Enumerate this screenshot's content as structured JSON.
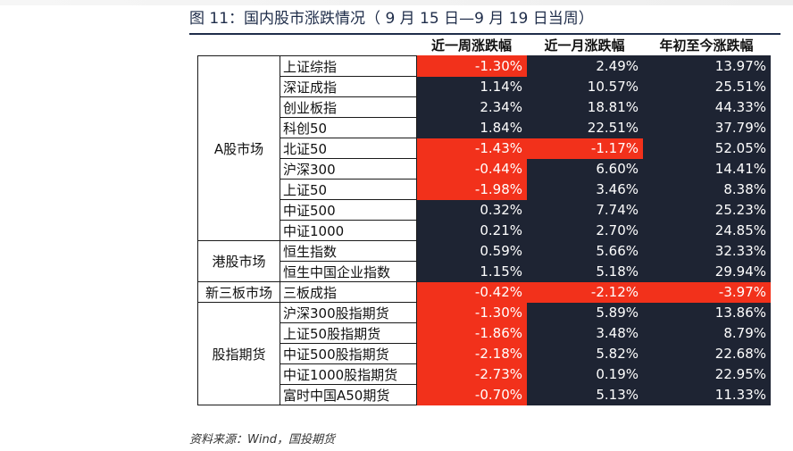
{
  "title": "图 11：国内股市涨跌情况（ 9 月 15 日—9 月 19 日当周）",
  "columns": [
    "近一周涨跌幅",
    "近一月涨跌幅",
    "年初至今涨跌幅"
  ],
  "groups": [
    {
      "label": "A股市场",
      "rows": [
        {
          "name": "上证综指",
          "values": [
            "-1.30%",
            "2.49%",
            "13.97%"
          ]
        },
        {
          "name": "深证成指",
          "values": [
            "1.14%",
            "10.57%",
            "25.51%"
          ]
        },
        {
          "name": "创业板指",
          "values": [
            "2.34%",
            "18.81%",
            "44.33%"
          ]
        },
        {
          "name": "科创50",
          "values": [
            "1.84%",
            "22.51%",
            "37.79%"
          ]
        },
        {
          "name": "北证50",
          "values": [
            "-1.43%",
            "-1.17%",
            "52.05%"
          ]
        },
        {
          "name": "沪深300",
          "values": [
            "-0.44%",
            "6.60%",
            "14.41%"
          ]
        },
        {
          "name": "上证50",
          "values": [
            "-1.98%",
            "3.46%",
            "8.38%"
          ]
        },
        {
          "name": "中证500",
          "values": [
            "0.32%",
            "7.74%",
            "25.23%"
          ]
        },
        {
          "name": "中证1000",
          "values": [
            "0.21%",
            "2.70%",
            "24.85%"
          ]
        }
      ]
    },
    {
      "label": "港股市场",
      "rows": [
        {
          "name": "恒生指数",
          "values": [
            "0.59%",
            "5.66%",
            "32.33%"
          ]
        },
        {
          "name": "恒生中国企业指数",
          "values": [
            "1.15%",
            "5.18%",
            "29.94%"
          ]
        }
      ]
    },
    {
      "label": "新三板市场",
      "rows": [
        {
          "name": "三板成指",
          "values": [
            "-0.42%",
            "-2.12%",
            "-3.97%"
          ]
        }
      ]
    },
    {
      "label": "股指期货",
      "rows": [
        {
          "name": "沪深300股指期货",
          "values": [
            "-1.30%",
            "5.89%",
            "13.86%"
          ]
        },
        {
          "name": "上证50股指期货",
          "values": [
            "-1.86%",
            "3.48%",
            "8.79%"
          ]
        },
        {
          "name": "中证500股指期货",
          "values": [
            "-2.18%",
            "5.82%",
            "22.68%"
          ]
        },
        {
          "name": "中证1000股指期货",
          "values": [
            "-2.73%",
            "0.19%",
            "22.95%"
          ]
        },
        {
          "name": "富时中国A50期货",
          "values": [
            "-0.70%",
            "5.13%",
            "11.33%"
          ]
        }
      ]
    }
  ],
  "source": "资料来源：Wind，国投期货",
  "colors": {
    "positive_bg": "#1e2433",
    "negative_bg": "#f2311b",
    "title_color": "#1f2d4a"
  }
}
